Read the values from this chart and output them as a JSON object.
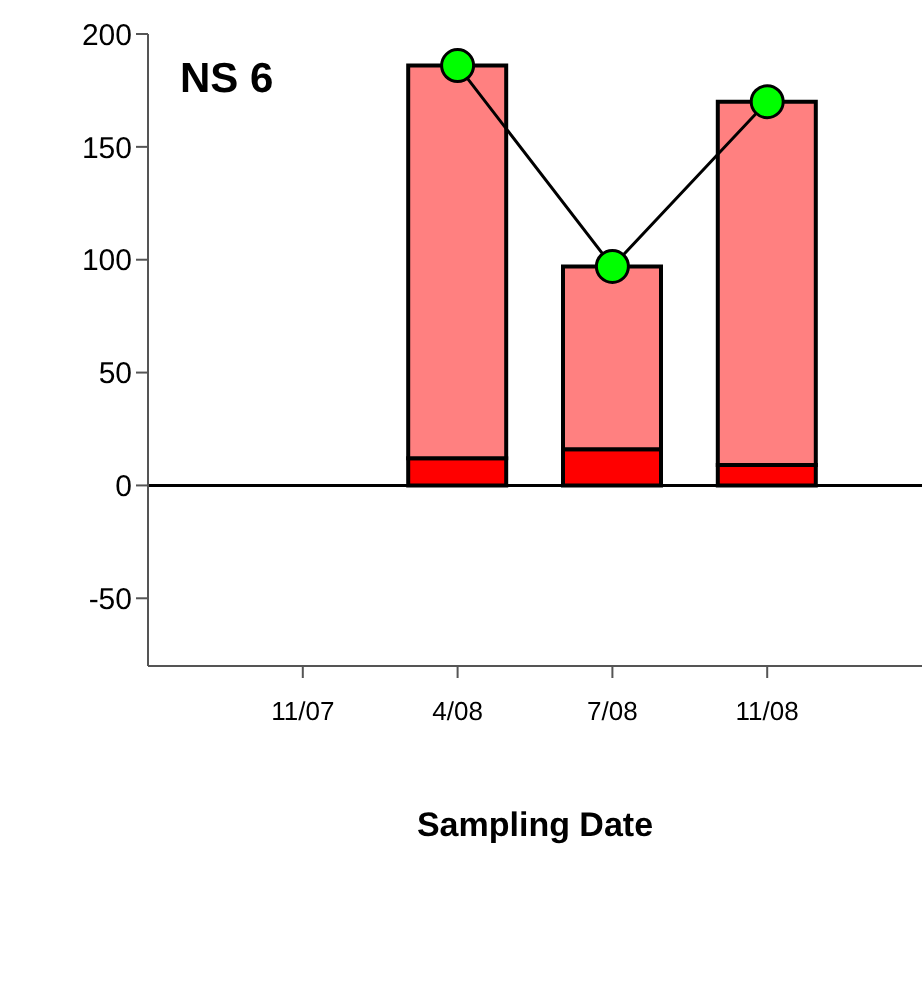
{
  "chart_data": {
    "type": "bar",
    "title": "NS 6",
    "xlabel": "Sampling Date",
    "categories": [
      "11/07",
      "4/08",
      "7/08",
      "11/08"
    ],
    "stacked": true,
    "series": [
      {
        "color": "#ff0000",
        "values": [
          null,
          12,
          16,
          9
        ]
      },
      {
        "color": "#ff8080",
        "values": [
          null,
          174,
          81,
          161
        ]
      },
      {
        "type": "line",
        "color": "#00ff00",
        "marker": "circle",
        "values": [
          null,
          186,
          97,
          170
        ]
      }
    ],
    "ylim": [
      -80,
      200
    ],
    "yticks": [
      -50,
      0,
      50,
      100,
      150,
      200
    ],
    "ref_lines": [
      {
        "axis": "y",
        "value": 0,
        "color": "#000000"
      }
    ],
    "grid": false,
    "legend": false
  }
}
